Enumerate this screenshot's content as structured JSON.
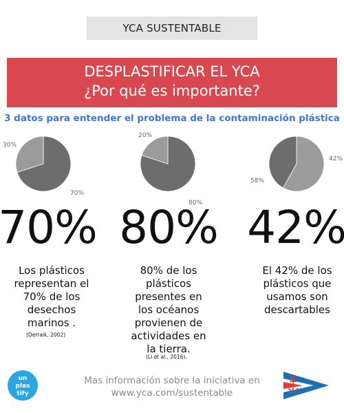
{
  "header": {
    "top_label": "YCA SUSTENTABLE",
    "banner_title": "DESPLASTIFICAR EL YCA",
    "banner_subtitle": "¿Por qué es importante?",
    "subtitle": "3 datos para entender el problema de la contaminación plástica"
  },
  "facts": [
    {
      "big": "70%",
      "pie": {
        "main_pct": 70,
        "other_pct": 30,
        "main_label": "70%",
        "other_label": "30%"
      },
      "desc_lines": [
        "Los plásticos",
        "representan el",
        "70% de los",
        "desechos",
        "marinos ."
      ],
      "citation": "(Derraik, 2002)"
    },
    {
      "big": "80%",
      "pie": {
        "main_pct": 80,
        "other_pct": 20,
        "main_label": "80%",
        "other_label": "20%"
      },
      "desc_lines": [
        "80% de los",
        "plásticos",
        "presentes en",
        "los océanos",
        "provienen de",
        "actividades en",
        "la tierra."
      ],
      "citation": "(Li et al., 2016)."
    },
    {
      "big": "42%",
      "pie": {
        "main_pct": 42,
        "other_pct": 58,
        "main_label": "42%",
        "other_label": "58%"
      },
      "desc_lines": [
        "El 42% de los",
        "plásticos que",
        "usamos son",
        "descartables"
      ],
      "citation": ""
    }
  ],
  "footer": {
    "line1": "Mas información sobre la iniciativa en",
    "line2": "www.yca.com/sustentable"
  },
  "logos": {
    "left_text_lines": [
      "un",
      "plas",
      "tify"
    ],
    "left_name": "unplastify-logo",
    "right_name": "yca-burgee-logo"
  },
  "colors": {
    "banner": "#d9474f",
    "subtitle": "#3d78d8",
    "pie_dark": "#6d6d6d",
    "pie_light": "#9b9b9b",
    "logo_blue": "#2aa6e0",
    "burgee_blue": "#1f6fb5",
    "burgee_red": "#e03a3a"
  }
}
